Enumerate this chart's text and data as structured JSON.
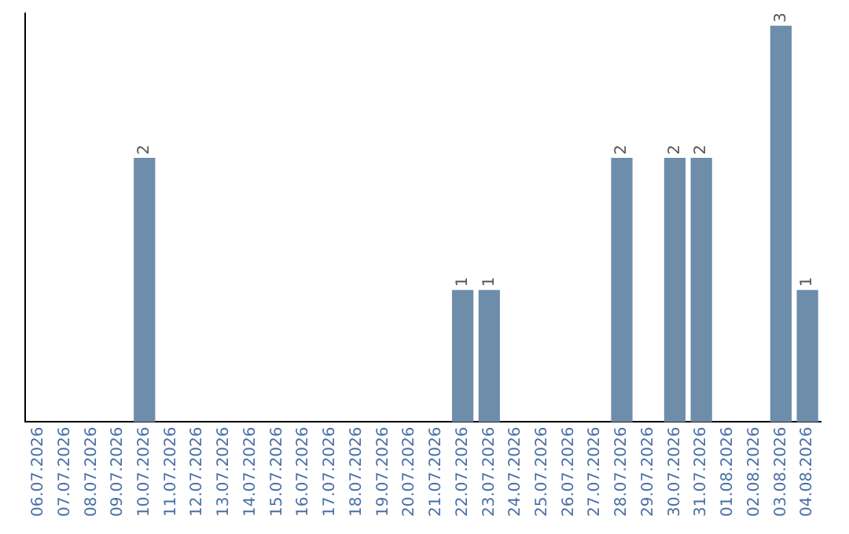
{
  "chart_data": {
    "type": "bar",
    "categories": [
      "06.07.2026",
      "07.07.2026",
      "08.07.2026",
      "09.07.2026",
      "10.07.2026",
      "11.07.2026",
      "12.07.2026",
      "13.07.2026",
      "14.07.2026",
      "15.07.2026",
      "16.07.2026",
      "17.07.2026",
      "18.07.2026",
      "19.07.2026",
      "20.07.2026",
      "21.07.2026",
      "22.07.2026",
      "23.07.2026",
      "24.07.2026",
      "25.07.2026",
      "26.07.2026",
      "27.07.2026",
      "28.07.2026",
      "29.07.2026",
      "30.07.2026",
      "31.07.2026",
      "01.08.2026",
      "02.08.2026",
      "03.08.2026",
      "04.08.2026"
    ],
    "values": [
      0,
      0,
      0,
      0,
      2,
      0,
      0,
      0,
      0,
      0,
      0,
      0,
      0,
      0,
      0,
      0,
      1,
      1,
      0,
      0,
      0,
      0,
      2,
      0,
      2,
      2,
      0,
      0,
      3,
      1
    ],
    "value_labels": [
      null,
      null,
      null,
      null,
      "2",
      null,
      null,
      null,
      null,
      null,
      null,
      null,
      null,
      null,
      null,
      null,
      "1",
      "1",
      null,
      null,
      null,
      null,
      "2",
      null,
      "2",
      "2",
      null,
      null,
      "3",
      "1"
    ],
    "color": "#6e8dab",
    "ylim": [
      0,
      3.1
    ],
    "tick_labels": "x",
    "grid": false,
    "legend": false
  }
}
